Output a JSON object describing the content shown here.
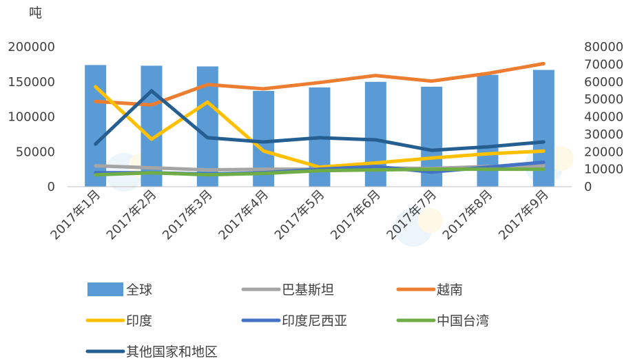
{
  "chart_data": {
    "type": "bar",
    "ylabel": "吨",
    "categories": [
      "2017年1月",
      "2017年2月",
      "2017年3月",
      "2017年4月",
      "2017年5月",
      "2017年6月",
      "2017年7月",
      "2017年8月",
      "2017年9月"
    ],
    "y_left": {
      "min": 0,
      "max": 200000,
      "ticks": [
        "0",
        "50000",
        "100000",
        "150000",
        "200000"
      ]
    },
    "y_right": {
      "min": 0,
      "max": 80000,
      "ticks": [
        "0",
        "10000",
        "20000",
        "30000",
        "40000",
        "50000",
        "60000",
        "70000",
        "80000"
      ]
    },
    "series": [
      {
        "name": "全球",
        "kind": "bar",
        "axis": "left",
        "color": "#5B9BD5",
        "values": [
          174000,
          173000,
          172000,
          137000,
          142000,
          150000,
          143000,
          160000,
          167000
        ]
      },
      {
        "name": "巴基斯坦",
        "kind": "line",
        "axis": "left",
        "color": "#A5A5A5",
        "values": [
          30000,
          27000,
          24000,
          25000,
          25000,
          27000,
          26000,
          29000,
          30000
        ]
      },
      {
        "name": "越南",
        "kind": "line",
        "axis": "left",
        "color": "#ED7D31",
        "values": [
          122000,
          117000,
          146000,
          140000,
          149000,
          159000,
          151000,
          162000,
          176000
        ]
      },
      {
        "name": "印度",
        "kind": "line",
        "axis": "left",
        "color": "#FFC000",
        "values": [
          143000,
          68000,
          121000,
          51000,
          28000,
          34000,
          41000,
          47000,
          51000
        ]
      },
      {
        "name": "印度尼西亚",
        "kind": "line",
        "axis": "left",
        "color": "#4472C4",
        "values": [
          20000,
          20000,
          18000,
          20000,
          25000,
          29000,
          21000,
          28000,
          35000
        ]
      },
      {
        "name": "中国台湾",
        "kind": "line",
        "axis": "left",
        "color": "#70AD47",
        "values": [
          17000,
          20000,
          17000,
          19000,
          23000,
          24000,
          25000,
          25000,
          25000
        ]
      },
      {
        "name": "其他国家和地区",
        "kind": "line",
        "axis": "left",
        "color": "#255E91",
        "values": [
          61000,
          137000,
          70000,
          64000,
          70000,
          67000,
          52000,
          57000,
          64000
        ]
      }
    ],
    "legend_position": "bottom",
    "grid": false
  }
}
